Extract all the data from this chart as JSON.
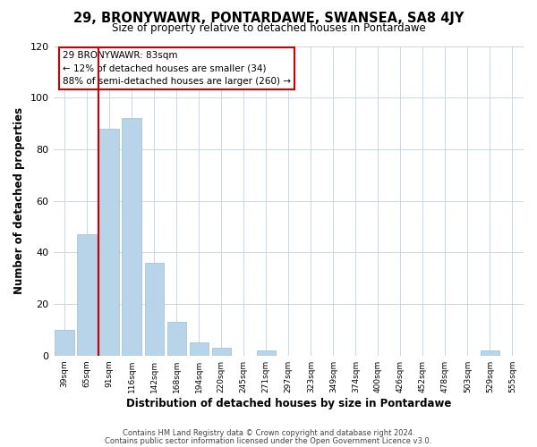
{
  "title": "29, BRONYWAWR, PONTARDAWE, SWANSEA, SA8 4JY",
  "subtitle": "Size of property relative to detached houses in Pontardawe",
  "xlabel": "Distribution of detached houses by size in Pontardawe",
  "ylabel": "Number of detached properties",
  "bar_color": "#b8d4e8",
  "bar_edge_color": "#9bbdd4",
  "categories": [
    "39sqm",
    "65sqm",
    "91sqm",
    "116sqm",
    "142sqm",
    "168sqm",
    "194sqm",
    "220sqm",
    "245sqm",
    "271sqm",
    "297sqm",
    "323sqm",
    "349sqm",
    "374sqm",
    "400sqm",
    "426sqm",
    "452sqm",
    "478sqm",
    "503sqm",
    "529sqm",
    "555sqm"
  ],
  "values": [
    10,
    47,
    88,
    92,
    36,
    13,
    5,
    3,
    0,
    2,
    0,
    0,
    0,
    0,
    0,
    0,
    0,
    0,
    0,
    2,
    0
  ],
  "ylim": [
    0,
    120
  ],
  "yticks": [
    0,
    20,
    40,
    60,
    80,
    100,
    120
  ],
  "property_line_color": "#cc0000",
  "annotation_title": "29 BRONYWAWR: 83sqm",
  "annotation_line1": "← 12% of detached houses are smaller (34)",
  "annotation_line2": "88% of semi-detached houses are larger (260) →",
  "annotation_box_color": "#ffffff",
  "annotation_box_edge": "#cc0000",
  "footer_line1": "Contains HM Land Registry data © Crown copyright and database right 2024.",
  "footer_line2": "Contains public sector information licensed under the Open Government Licence v3.0.",
  "background_color": "#ffffff",
  "grid_color": "#c8d8e8"
}
